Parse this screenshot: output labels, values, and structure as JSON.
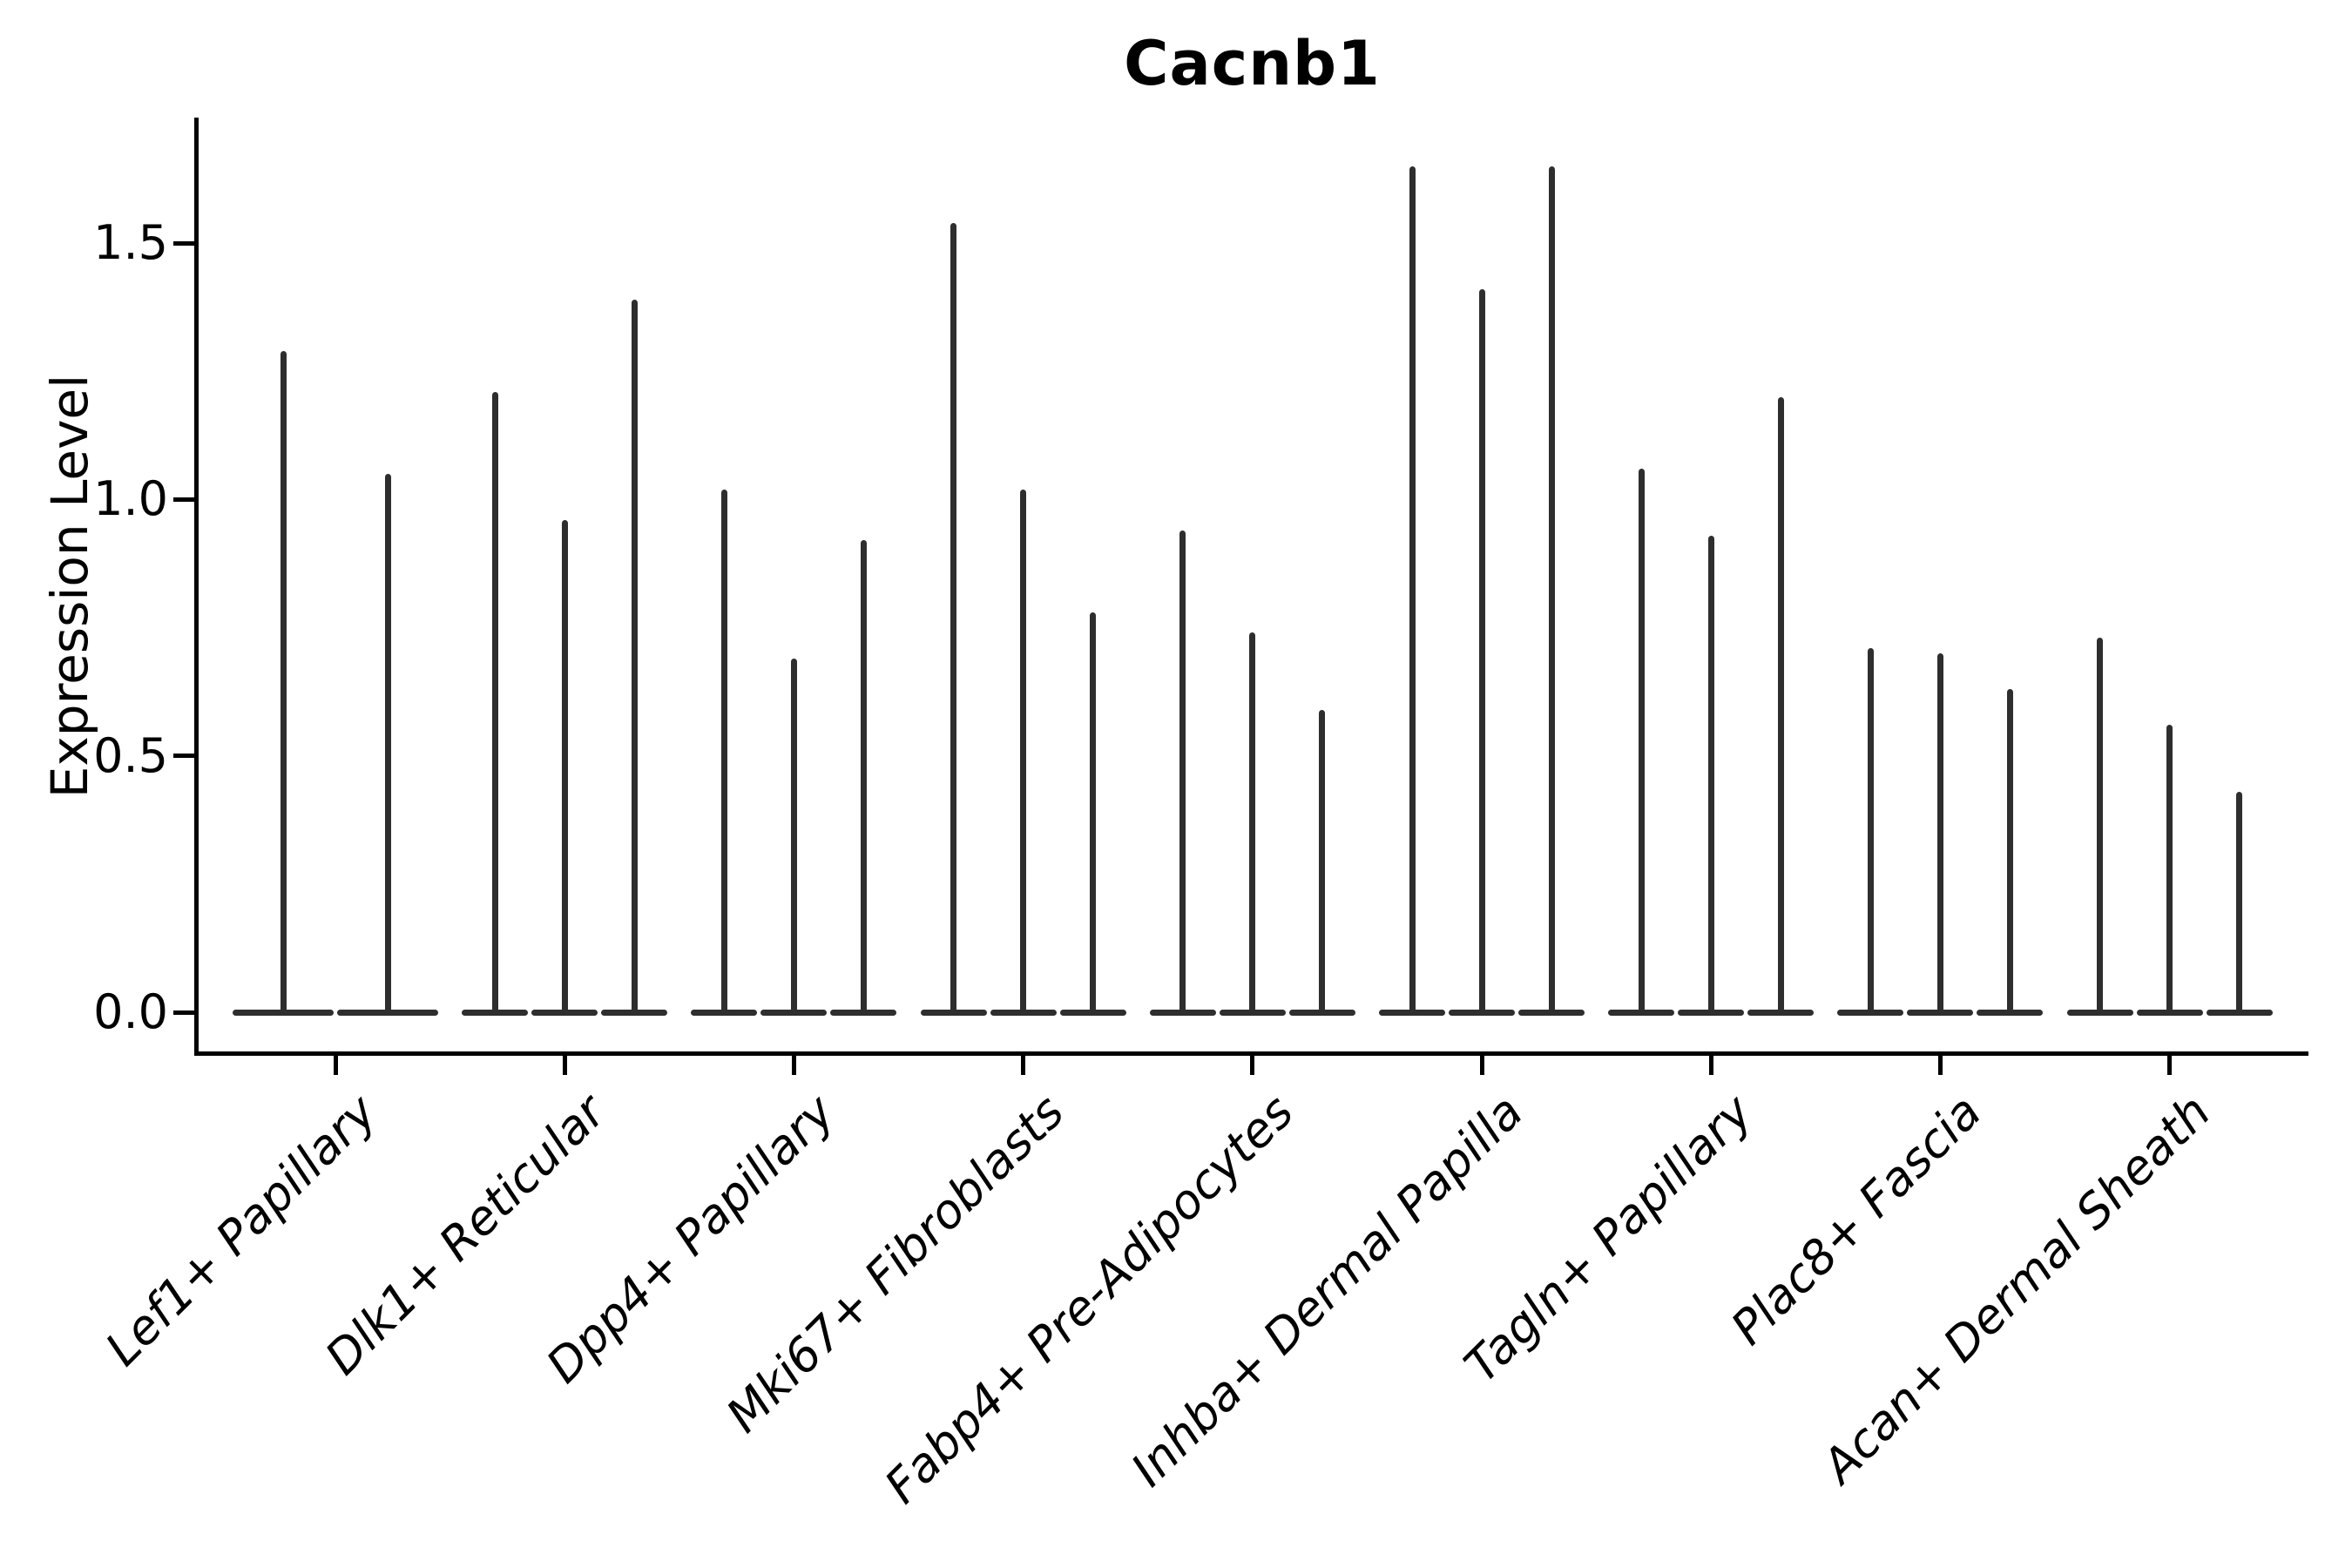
{
  "chart_data": {
    "type": "violin",
    "title": "Cacnb1",
    "xlabel": "",
    "ylabel": "Expression Level",
    "ylim": [
      -0.08,
      1.74
    ],
    "yticks": [
      0.0,
      0.5,
      1.0,
      1.5
    ],
    "ytick_labels": [
      "0.0",
      "0.5",
      "1.0",
      "1.5"
    ],
    "grid": false,
    "legend": "none",
    "categories": [
      "Lef1+ Papillary",
      "Dlk1+ Reticular",
      "Dpp4+ Papillary",
      "Mki67+ Fibroblasts",
      "Fabp4+ Pre-Adipocytes",
      "Inhba+ Dermal Papilla",
      "Tagln+ Papillary",
      "Plac8+ Fascia",
      "Acan+ Dermal Sheath"
    ],
    "series": [
      {
        "category": "Lef1+ Papillary",
        "violin_max_values": [
          1.29,
          1.05
        ]
      },
      {
        "category": "Dlk1+ Reticular",
        "violin_max_values": [
          1.21,
          0.96,
          1.39
        ]
      },
      {
        "category": "Dpp4+ Papillary",
        "violin_max_values": [
          1.02,
          0.69,
          0.92
        ]
      },
      {
        "category": "Mki67+ Fibroblasts",
        "violin_max_values": [
          1.54,
          1.02,
          0.78
        ]
      },
      {
        "category": "Fabp4+ Pre-Adipocytes",
        "violin_max_values": [
          0.94,
          0.74,
          0.59
        ]
      },
      {
        "category": "Inhba+ Dermal Papilla",
        "violin_max_values": [
          1.65,
          1.41,
          1.65
        ]
      },
      {
        "category": "Tagln+ Papillary",
        "violin_max_values": [
          1.06,
          0.93,
          1.2
        ]
      },
      {
        "category": "Plac8+ Fascia",
        "violin_max_values": [
          0.71,
          0.7,
          0.63
        ]
      },
      {
        "category": "Acan+ Dermal Sheath",
        "violin_max_values": [
          0.73,
          0.56,
          0.43
        ]
      }
    ],
    "shape_note": "Each violin has its mass concentrated at expression 0 (wide flat base) with a thin vertical spike rising to the maximum expression value."
  },
  "colors": {
    "background": "#ffffff",
    "violin": "#2e2e2e",
    "axis": "#000000",
    "text": "#000000"
  }
}
